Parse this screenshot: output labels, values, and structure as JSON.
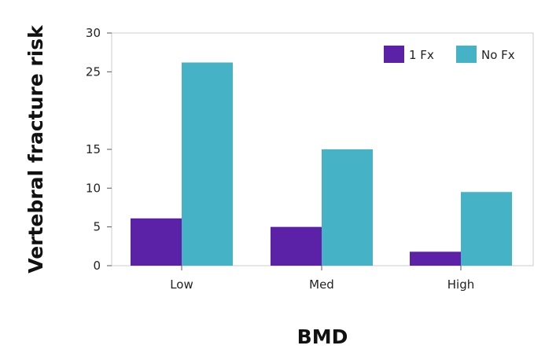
{
  "chart_data": {
    "type": "bar",
    "title": "",
    "xlabel": "BMD",
    "ylabel": "Vertebral fracture risk",
    "categories": [
      "Low",
      "Med",
      "High"
    ],
    "series": [
      {
        "name": "1 Fx",
        "color": "#5b22a7",
        "values": [
          6.1,
          5.0,
          1.8
        ]
      },
      {
        "name": "No Fx",
        "color": "#45b2c6",
        "values": [
          26.2,
          15.0,
          9.5
        ]
      }
    ],
    "y_ticks": [
      0,
      5,
      10,
      15,
      25,
      30
    ],
    "y_tick_labels": [
      "0",
      "5",
      "10",
      "15",
      "25",
      "30"
    ],
    "ylim": [
      0,
      30
    ],
    "grid": false,
    "legend_position": "top-right"
  }
}
